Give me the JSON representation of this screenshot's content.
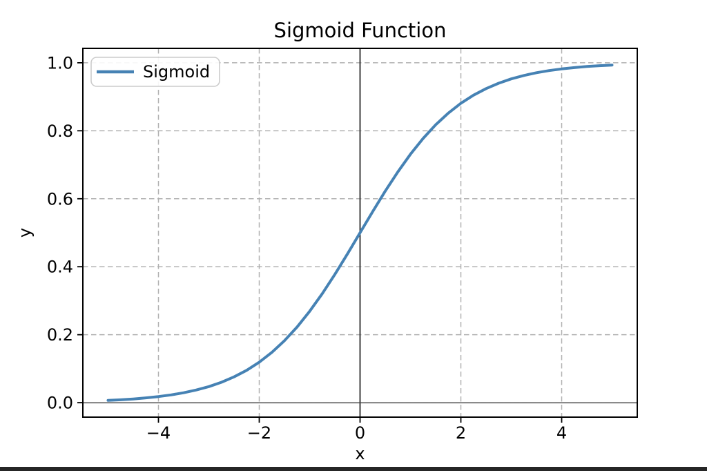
{
  "chart_data": {
    "type": "line",
    "title": "Sigmoid Function",
    "xlabel": "x",
    "ylabel": "y",
    "xlim": [
      -5.5,
      5.5
    ],
    "ylim": [
      -0.0425,
      1.0425
    ],
    "xticks": [
      -4,
      -2,
      0,
      2,
      4
    ],
    "xtick_labels": [
      "−4",
      "−2",
      "0",
      "2",
      "4"
    ],
    "yticks": [
      0.0,
      0.2,
      0.4,
      0.6,
      0.8,
      1.0
    ],
    "ytick_labels": [
      "0.0",
      "0.2",
      "0.4",
      "0.6",
      "0.8",
      "1.0"
    ],
    "grid": true,
    "grid_style": "dashed",
    "legend": {
      "position": "upper left",
      "entries": [
        {
          "label": "Sigmoid",
          "color": "#4682b4"
        }
      ]
    },
    "reference_lines": {
      "horizontal_y": 0,
      "vertical_x": 0
    },
    "series": [
      {
        "name": "Sigmoid",
        "color": "#4682b4",
        "x": [
          -5,
          -4.75,
          -4.5,
          -4.25,
          -4,
          -3.75,
          -3.5,
          -3.25,
          -3,
          -2.75,
          -2.5,
          -2.25,
          -2,
          -1.75,
          -1.5,
          -1.25,
          -1,
          -0.75,
          -0.5,
          -0.25,
          0,
          0.25,
          0.5,
          0.75,
          1,
          1.25,
          1.5,
          1.75,
          2,
          2.25,
          2.5,
          2.75,
          3,
          3.25,
          3.5,
          3.75,
          4,
          4.25,
          4.5,
          4.75,
          5
        ],
        "y": [
          0.0067,
          0.0086,
          0.011,
          0.0141,
          0.018,
          0.0229,
          0.0293,
          0.0374,
          0.0474,
          0.0601,
          0.0759,
          0.0953,
          0.1192,
          0.148,
          0.1824,
          0.2227,
          0.2689,
          0.3208,
          0.3775,
          0.4378,
          0.5,
          0.5622,
          0.6225,
          0.6792,
          0.7311,
          0.7773,
          0.8176,
          0.852,
          0.8808,
          0.9047,
          0.9241,
          0.9399,
          0.9526,
          0.9626,
          0.9707,
          0.9771,
          0.982,
          0.9859,
          0.989,
          0.9914,
          0.9933
        ]
      }
    ]
  },
  "colors": {
    "line": "#4682b4",
    "grid": "#b0b0b0",
    "h_reference_line": "#808080",
    "v_reference_line": "#3f3f3f",
    "frame": "#000000",
    "legend_border": "#cccccc",
    "legend_fill": "#ffffff",
    "bottom_bar": "#262626"
  }
}
